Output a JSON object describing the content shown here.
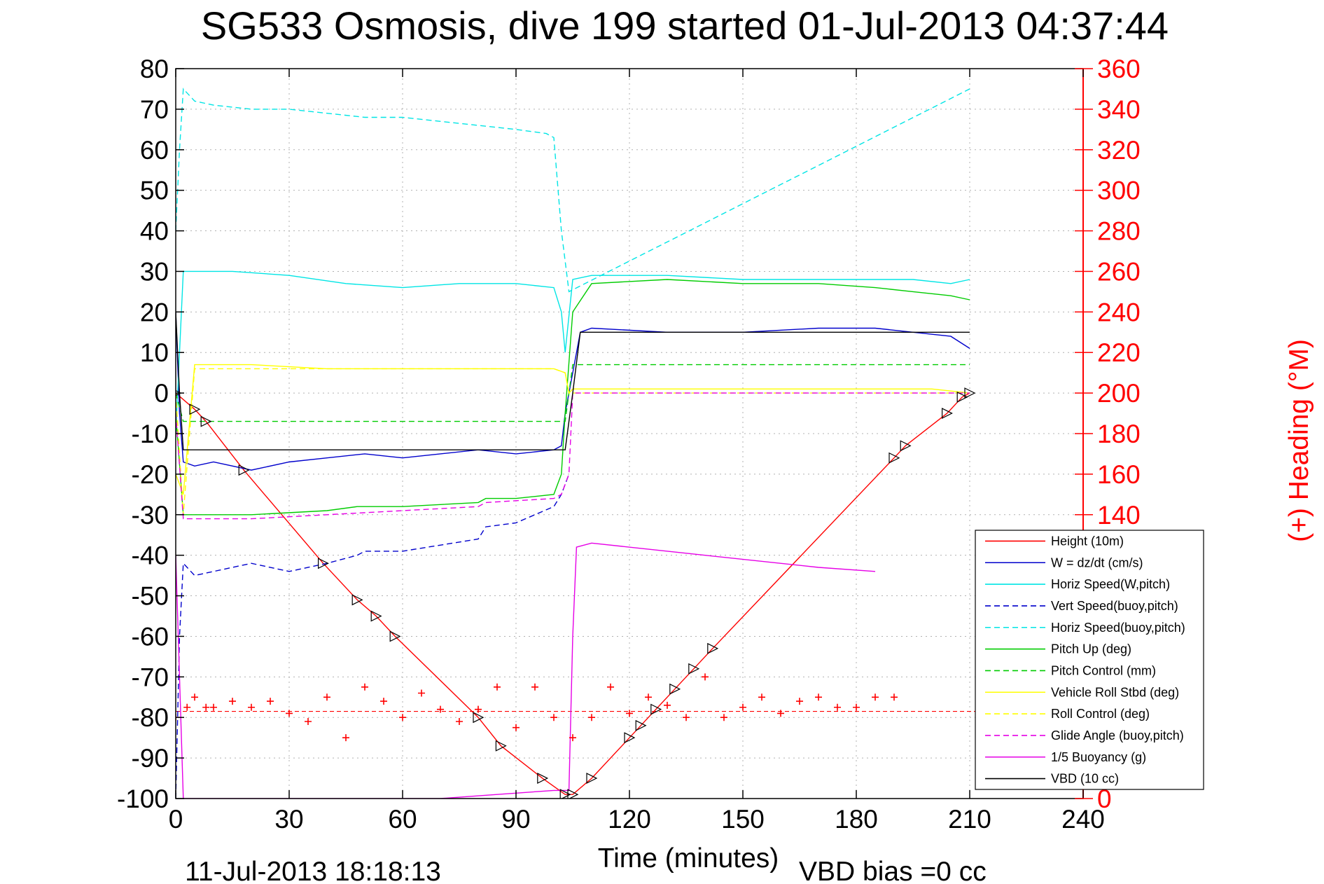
{
  "chart_data": {
    "type": "line",
    "title": "SG533 Osmosis, dive 199 started 01-Jul-2013 04:37:44",
    "xlabel": "Time (minutes)",
    "ylabel": "",
    "y2label": "(+) Heading (°M)",
    "xlim": [
      0,
      240
    ],
    "ylim": [
      -100,
      80
    ],
    "y2lim": [
      0,
      360
    ],
    "xticks": [
      0,
      30,
      60,
      90,
      120,
      150,
      180,
      210,
      240
    ],
    "yticks": [
      -100,
      -90,
      -80,
      -70,
      -60,
      -50,
      -40,
      -30,
      -20,
      -10,
      0,
      10,
      20,
      30,
      40,
      50,
      60,
      70,
      80
    ],
    "y2ticks": [
      0,
      20,
      40,
      60,
      80,
      100,
      120,
      140,
      160,
      180,
      200,
      220,
      240,
      260,
      280,
      300,
      320,
      340,
      360
    ],
    "grid": true,
    "legend_position": "bottom-right",
    "footer_left": "11-Jul-2013 18:18:13",
    "footer_right": "VBD bias =0 cc",
    "colors": {
      "red": "#ff0000",
      "blue": "#0000cc",
      "cyan": "#00e5e5",
      "green": "#00cc00",
      "yellow": "#ffff00",
      "magenta": "#e600e6",
      "black": "#000000"
    },
    "series": [
      {
        "name": "Height (10m)",
        "color": "#ff0000",
        "style": "solid",
        "x": [
          0,
          5,
          8,
          18,
          39,
          48,
          53,
          58,
          80,
          86,
          97,
          103,
          105,
          110,
          120,
          123,
          127,
          132,
          137,
          142,
          190,
          193,
          204,
          208,
          210
        ],
        "y": [
          0,
          -4,
          -7,
          -19,
          -42,
          -51,
          -55,
          -60,
          -80,
          -87,
          -95,
          -99,
          -99,
          -95,
          -85,
          -82,
          -78,
          -73,
          -68,
          -63,
          -16,
          -13,
          -5,
          -1,
          0
        ]
      },
      {
        "name": "W = dz/dt (cm/s)",
        "color": "#0000cc",
        "style": "solid",
        "x": [
          0,
          1,
          2,
          5,
          10,
          20,
          30,
          40,
          50,
          60,
          70,
          80,
          90,
          100,
          102,
          103,
          105,
          107,
          110,
          130,
          150,
          170,
          185,
          195,
          205,
          210
        ],
        "y": [
          20,
          -5,
          -17,
          -18,
          -17,
          -19,
          -17,
          -16,
          -15,
          -16,
          -15,
          -14,
          -15,
          -14,
          -13,
          -5,
          5,
          15,
          16,
          15,
          15,
          16,
          16,
          15,
          14,
          11
        ]
      },
      {
        "name": "Horiz Speed(W,pitch)",
        "color": "#00e5e5",
        "style": "solid",
        "x": [
          0,
          2,
          5,
          15,
          30,
          45,
          60,
          75,
          90,
          100,
          102,
          103,
          105,
          110,
          130,
          150,
          170,
          185,
          195,
          205,
          210
        ],
        "y": [
          -10,
          30,
          30,
          30,
          29,
          27,
          26,
          27,
          27,
          26,
          20,
          10,
          28,
          29,
          29,
          28,
          28,
          28,
          28,
          27,
          28
        ]
      },
      {
        "name": "Vert Speed(buoy,pitch)",
        "color": "#0000cc",
        "style": "dashed",
        "x": [
          0,
          1,
          2,
          5,
          10,
          20,
          30,
          40,
          48,
          50,
          60,
          80,
          82,
          90,
          95,
          100,
          102,
          104
        ],
        "y": [
          -100,
          -60,
          -42,
          -45,
          -44,
          -42,
          -44,
          -42,
          -40,
          -39,
          -39,
          -36,
          -33,
          -32,
          -30,
          -28,
          -25,
          -20
        ]
      },
      {
        "name": "Horiz Speed(buoy,pitch)",
        "color": "#00e5e5",
        "style": "dashed",
        "x": [
          0,
          1,
          2,
          5,
          10,
          20,
          30,
          40,
          50,
          60,
          70,
          80,
          90,
          98,
          100,
          102,
          104,
          210
        ],
        "y": [
          40,
          60,
          75,
          72,
          71,
          70,
          70,
          69,
          68,
          68,
          67,
          66,
          65,
          64,
          63,
          40,
          25,
          75
        ]
      },
      {
        "name": "Pitch Up (deg)",
        "color": "#00cc00",
        "style": "solid",
        "x": [
          0,
          2,
          5,
          20,
          40,
          48,
          60,
          80,
          82,
          90,
          100,
          102,
          103,
          105,
          110,
          130,
          150,
          170,
          185,
          195,
          205,
          210
        ],
        "y": [
          -5,
          -30,
          -30,
          -30,
          -29,
          -28,
          -28,
          -27,
          -26,
          -26,
          -25,
          -20,
          -5,
          20,
          27,
          28,
          27,
          27,
          26,
          25,
          24,
          23
        ]
      },
      {
        "name": "Pitch Control (mm)",
        "color": "#00cc00",
        "style": "dashed",
        "x": [
          0,
          2,
          40,
          41,
          103,
          104,
          105,
          210
        ],
        "y": [
          0,
          -7,
          -7,
          -7,
          -7,
          0,
          7,
          7
        ]
      },
      {
        "name": "Vehicle Roll Stbd (deg)",
        "color": "#ffff00",
        "style": "solid",
        "x": [
          0,
          2,
          5,
          10,
          20,
          40,
          60,
          80,
          90,
          100,
          103,
          104,
          105,
          110,
          125,
          150,
          175,
          190,
          200,
          210
        ],
        "y": [
          -20,
          -25,
          7,
          7,
          7,
          6,
          6,
          6,
          6,
          6,
          5,
          0,
          1,
          1,
          1,
          1,
          1,
          1,
          1,
          0
        ]
      },
      {
        "name": "Roll Control (deg)",
        "color": "#ffff00",
        "style": "dashed",
        "x": [
          0,
          2,
          5,
          10,
          20,
          40,
          60,
          80,
          90,
          100,
          103,
          104,
          105,
          210
        ],
        "y": [
          0,
          -30,
          6,
          6,
          6,
          6,
          6,
          6,
          6,
          6,
          5,
          0,
          0,
          0
        ]
      },
      {
        "name": "Glide Angle (buoy,pitch)",
        "color": "#e600e6",
        "style": "dashed",
        "x": [
          0,
          2,
          5,
          20,
          40,
          60,
          80,
          82,
          100,
          102,
          104,
          105,
          210
        ],
        "y": [
          -5,
          -31,
          -31,
          -31,
          -30,
          -29,
          -28,
          -27,
          -26,
          -25,
          -20,
          0,
          0
        ]
      },
      {
        "name": "1/5 Buoyancy (g)",
        "color": "#e600e6",
        "style": "solid",
        "x": [
          0,
          1,
          2,
          3,
          70,
          85,
          100,
          104,
          105,
          106,
          110,
          140,
          170,
          185
        ],
        "y": [
          -40,
          -70,
          -100,
          -100,
          -100,
          -99,
          -98,
          -98,
          -60,
          -38,
          -37,
          -40,
          -43,
          -44
        ]
      },
      {
        "name": "VBD (10 cc)",
        "color": "#000000",
        "style": "solid",
        "x": [
          0,
          1,
          2,
          103,
          105,
          107,
          210
        ],
        "y": [
          20,
          0,
          -14,
          -14,
          0,
          15,
          15
        ]
      }
    ],
    "heading": {
      "name": "(+) Heading (°M)",
      "color": "#ff0000",
      "marker": "+",
      "x": [
        0,
        3,
        5,
        8,
        10,
        15,
        20,
        25,
        30,
        35,
        40,
        45,
        50,
        55,
        60,
        65,
        70,
        75,
        80,
        85,
        90,
        95,
        100,
        105,
        110,
        115,
        120,
        125,
        130,
        135,
        140,
        145,
        150,
        155,
        160,
        165,
        170,
        175,
        180,
        185,
        190
      ],
      "y": [
        40,
        45,
        50,
        45,
        45,
        48,
        45,
        48,
        42,
        38,
        50,
        30,
        55,
        48,
        40,
        52,
        44,
        38,
        44,
        55,
        35,
        55,
        40,
        30,
        40,
        55,
        42,
        50,
        46,
        40,
        60,
        40,
        45,
        50,
        42,
        48,
        50,
        45,
        45,
        50,
        50
      ]
    },
    "heading_mean": 43
  }
}
